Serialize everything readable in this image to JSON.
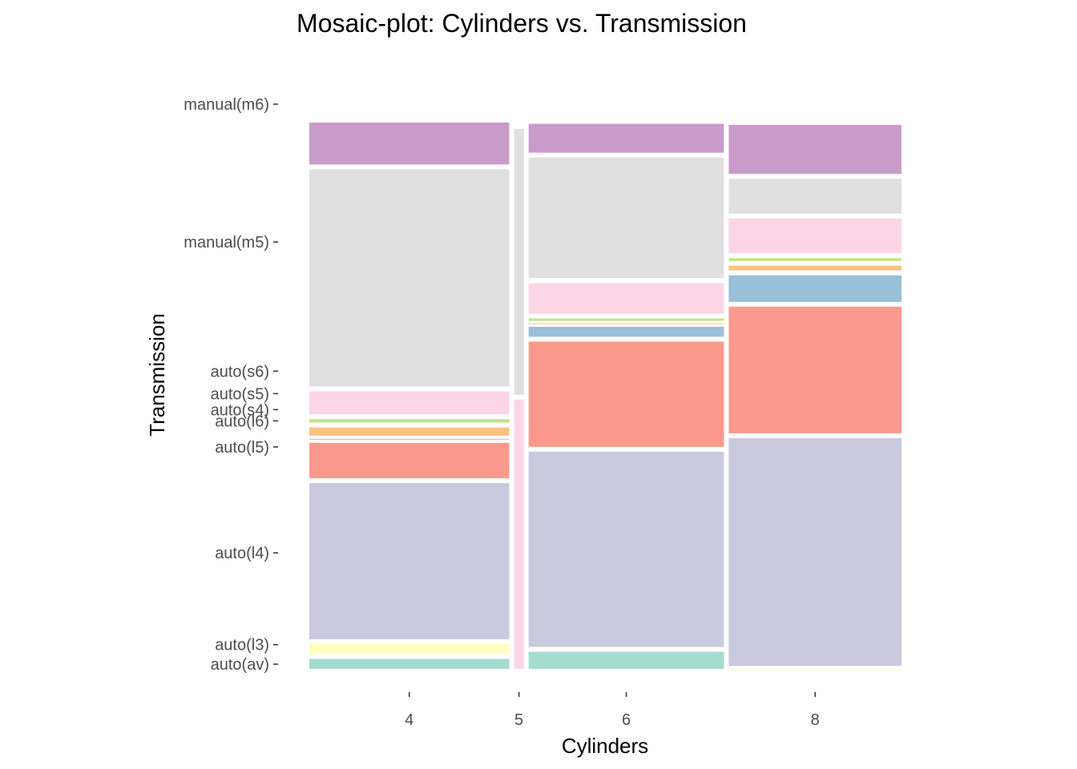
{
  "chart_data": {
    "type": "mosaic",
    "title": "Mosaic-plot: Cylinders vs. Transmission",
    "xlabel": "Cylinders",
    "ylabel": "Transmission",
    "grid": false,
    "legend": "none",
    "categories": [
      "4",
      "5",
      "6",
      "8"
    ],
    "column_shares": [
      0.346,
      0.017,
      0.338,
      0.299
    ],
    "transmissions": [
      "auto(av)",
      "auto(l3)",
      "auto(l4)",
      "auto(l5)",
      "auto(l6)",
      "auto(s4)",
      "auto(s5)",
      "auto(s6)",
      "manual(m5)",
      "manual(m6)"
    ],
    "colors": {
      "auto(av)": "#a6dcd0",
      "auto(l3)": "#ffffc0",
      "auto(l4)": "#cbc9e0",
      "auto(l5)": "#fb9a8c",
      "auto(l6)": "#9ac0da",
      "auto(s4)": "#fdc280",
      "auto(s5)": "#c1e284",
      "auto(s6)": "#fcd6e6",
      "manual(m5)": "#e0e0e0",
      "manual(m6)": "#c99bcb"
    },
    "y_ticks": [
      {
        "label": "auto(av)",
        "value": 0.012
      },
      {
        "label": "auto(l3)",
        "value": 0.045
      },
      {
        "label": "auto(l4)",
        "value": 0.2
      },
      {
        "label": "auto(l5)",
        "value": 0.379
      },
      {
        "label": "auto(l6)",
        "value": 0.423
      },
      {
        "label": "auto(s4)",
        "value": 0.442
      },
      {
        "label": "auto(s5)",
        "value": 0.469
      },
      {
        "label": "auto(s6)",
        "value": 0.507
      },
      {
        "label": "manual(m5)",
        "value": 0.725
      },
      {
        "label": "manual(m6)",
        "value": 0.958
      }
    ],
    "columns": [
      {
        "cylinders": "4",
        "proportions": {
          "auto(av)": 0.025,
          "auto(l3)": 0.025,
          "auto(l4)": 0.272,
          "auto(l5)": 0.068,
          "auto(l6)": 0.004,
          "auto(s4)": 0.022,
          "auto(s5)": 0.014,
          "auto(s6)": 0.047,
          "manual(m5)": 0.375,
          "manual(m6)": 0.079
        }
      },
      {
        "cylinders": "5",
        "proportions": {
          "auto(av)": 0.0,
          "auto(l3)": 0.0,
          "auto(l4)": 0.0,
          "auto(l5)": 0.0,
          "auto(l6)": 0.0,
          "auto(s4)": 0.0,
          "auto(s5)": 0.0,
          "auto(s6)": 0.463,
          "manual(m5)": 0.457,
          "manual(m6)": 0.0
        }
      },
      {
        "cylinders": "6",
        "proportions": {
          "auto(av)": 0.037,
          "auto(l3)": 0.0,
          "auto(l4)": 0.338,
          "auto(l5)": 0.186,
          "auto(l6)": 0.025,
          "auto(s4)": 0.002,
          "auto(s5)": 0.012,
          "auto(s6)": 0.06,
          "manual(m5)": 0.212,
          "manual(m6)": 0.057
        }
      },
      {
        "cylinders": "8",
        "proportions": {
          "auto(av)": 0.0,
          "auto(l3)": 0.005,
          "auto(l4)": 0.393,
          "auto(l5)": 0.222,
          "auto(l6)": 0.053,
          "auto(s4)": 0.016,
          "auto(s5)": 0.013,
          "auto(s6)": 0.067,
          "manual(m5)": 0.067,
          "manual(m6)": 0.091
        }
      }
    ]
  }
}
